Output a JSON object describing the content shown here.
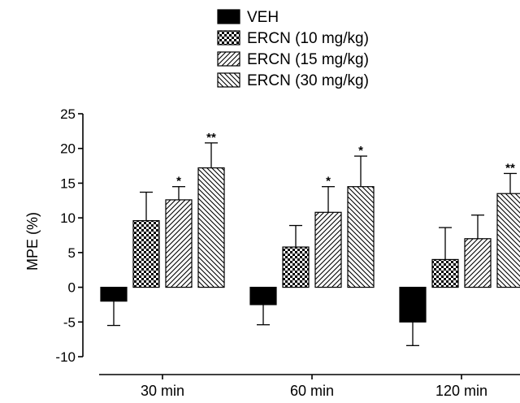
{
  "chart_data": {
    "type": "bar",
    "title": "",
    "xlabel": "",
    "ylabel": "MPE (%)",
    "ylim": [
      -10,
      25
    ],
    "yticks": [
      -10,
      -5,
      0,
      5,
      10,
      15,
      20,
      25
    ],
    "ytick_labels": [
      "-10",
      "-5",
      "0",
      "5",
      "10",
      "15",
      "20",
      "25"
    ],
    "grid": false,
    "legend_position": "top",
    "categories": [
      "30 min",
      "60 min",
      "120 min"
    ],
    "series": [
      {
        "name": "VEH",
        "pattern": "solid",
        "values": [
          -2.0,
          -2.5,
          -5.0
        ],
        "errors": [
          3.5,
          2.9,
          3.4
        ],
        "significance": [
          "",
          "",
          ""
        ]
      },
      {
        "name": "ERCN (10 mg/kg)",
        "pattern": "checker",
        "values": [
          9.6,
          5.8,
          4.0
        ],
        "errors": [
          4.1,
          3.1,
          4.6
        ],
        "significance": [
          "",
          "",
          ""
        ]
      },
      {
        "name": "ERCN (15 mg/kg)",
        "pattern": "diagonal-up",
        "values": [
          12.6,
          10.8,
          7.0
        ],
        "errors": [
          1.9,
          3.7,
          3.4
        ],
        "significance": [
          "*",
          "*",
          ""
        ]
      },
      {
        "name": "ERCN (30 mg/kg)",
        "pattern": "diagonal-down",
        "values": [
          17.2,
          14.5,
          13.5
        ],
        "errors": [
          3.6,
          4.4,
          2.9
        ],
        "significance": [
          "**",
          "*",
          "**"
        ]
      }
    ]
  }
}
